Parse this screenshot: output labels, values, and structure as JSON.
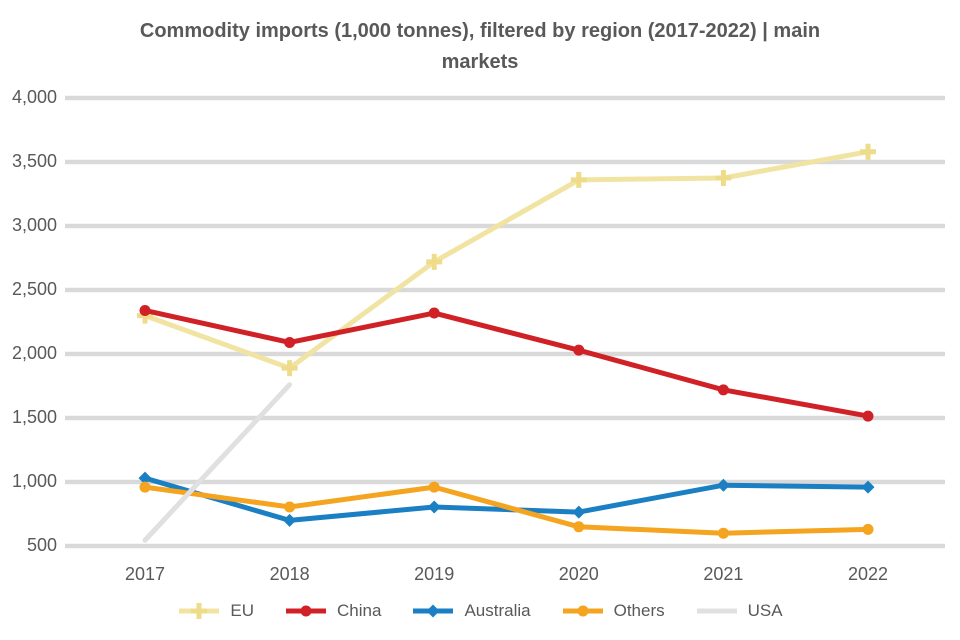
{
  "title": {
    "line1": "Commodity imports (1,000 tonnes), filtered by region (2017-2022) | main",
    "line2": "markets"
  },
  "colors": {
    "background": "#ffffff",
    "grid": "#d9d9d9",
    "text": "#595959"
  },
  "chart_data": {
    "type": "line",
    "categories": [
      "2017",
      "2018",
      "2019",
      "2020",
      "2021",
      "2022"
    ],
    "ylim": [
      500,
      4000
    ],
    "ytick_step": 500,
    "grid": true,
    "legend_position": "bottom",
    "series": [
      {
        "name": "EU",
        "color": "#f1e4a2",
        "marker": "plus",
        "marker_color": "#eedc8a",
        "values": [
          2300,
          1890,
          2720,
          3360,
          3375,
          3580
        ]
      },
      {
        "name": "China",
        "color": "#d02127",
        "marker": "circle",
        "marker_color": "#d02127",
        "values": [
          2340,
          2090,
          2320,
          2030,
          1720,
          1515
        ]
      },
      {
        "name": "Australia",
        "color": "#1b7fc4",
        "marker": "diamond",
        "marker_color": "#1b7fc4",
        "values": [
          1030,
          700,
          805,
          765,
          975,
          960
        ]
      },
      {
        "name": "Others",
        "color": "#f4a41f",
        "marker": "circle",
        "marker_color": "#f4a41f",
        "values": [
          960,
          805,
          960,
          650,
          600,
          630
        ]
      },
      {
        "name": "USA",
        "color": "#e0e0e0",
        "marker": "none",
        "marker_color": "#e0e0e0",
        "values": [
          545,
          1760,
          null,
          null,
          null,
          null
        ]
      }
    ]
  }
}
